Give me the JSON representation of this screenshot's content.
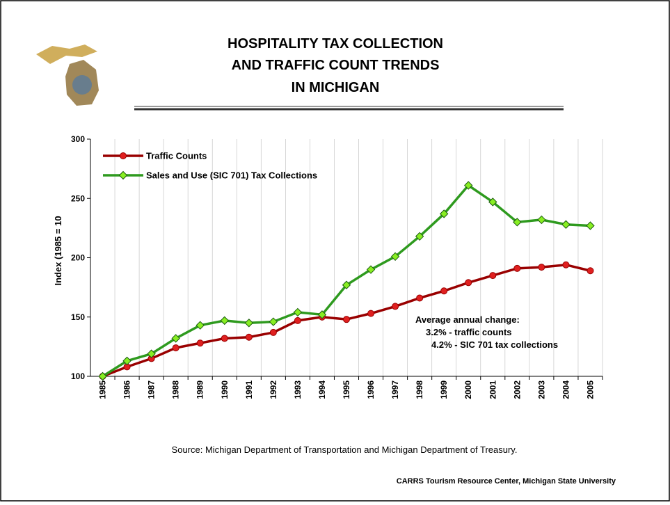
{
  "title_lines": [
    "HOSPITALITY TAX COLLECTION",
    "AND TRAFFIC COUNT TRENDS",
    "IN MICHIGAN"
  ],
  "source": "Source:  Michigan Department of Transportation and Michigan Department of Treasury.",
  "footer": "CARRS Tourism Resource Center, Michigan State University",
  "chart_data": {
    "type": "line",
    "y_label": "Index (1985 = 10",
    "categories": [
      "1985",
      "1986",
      "1987",
      "1988",
      "1989",
      "1990",
      "1991",
      "1992",
      "1993",
      "1994",
      "1995",
      "1996",
      "1997",
      "1998",
      "1999",
      "2000",
      "2001",
      "2002",
      "2003",
      "2004",
      "2005"
    ],
    "series": [
      {
        "name": "Traffic Counts",
        "color": "#990000",
        "marker_color": "#e02020",
        "marker": "circle",
        "values": [
          100,
          108,
          115,
          124,
          128,
          132,
          133,
          137,
          147,
          150,
          148,
          153,
          159,
          166,
          172,
          179,
          185,
          191,
          192,
          194,
          189
        ]
      },
      {
        "name": "Sales and Use (SIC 701) Tax Collections",
        "color": "#2e9a1e",
        "marker_color": "#88ee22",
        "marker": "diamond",
        "values": [
          100,
          113,
          119,
          132,
          143,
          147,
          145,
          146,
          154,
          152,
          177,
          190,
          201,
          218,
          237,
          261,
          247,
          230,
          232,
          228,
          227
        ]
      }
    ],
    "ylim": [
      100,
      300
    ],
    "yticks": [
      100,
      150,
      200,
      250,
      300
    ],
    "legend": "top-left",
    "annotation": [
      "Average annual change:",
      "3.2% - traffic counts",
      "4.2% - SIC 701 tax collections"
    ]
  }
}
